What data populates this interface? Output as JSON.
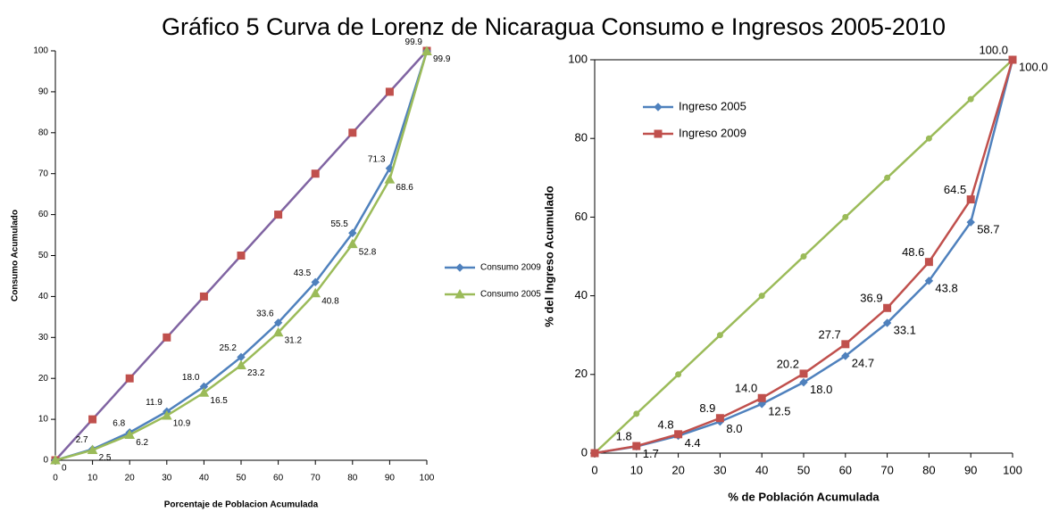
{
  "title": "Gráfico 5 Curva de Lorenz de Nicaragua Consumo e Ingresos 2005-2010",
  "chart_data": [
    {
      "type": "line",
      "x": [
        0,
        10,
        20,
        30,
        40,
        50,
        60,
        70,
        80,
        90,
        100
      ],
      "xlim": [
        0,
        100
      ],
      "xticks": [
        0,
        10,
        20,
        30,
        40,
        50,
        60,
        70,
        80,
        90,
        100
      ],
      "ylim": [
        0,
        100
      ],
      "yticks": [
        0,
        10,
        20,
        30,
        40,
        50,
        60,
        70,
        80,
        90,
        100
      ],
      "xlabel": "Porcentaje de Poblacion Acumulada",
      "ylabel": "Consumo Acumulado",
      "legend": "right",
      "series": [
        {
          "color": "#8064a2",
          "marker_color": "#c0504d",
          "marker": "square",
          "values": [
            0,
            10,
            20,
            30,
            40,
            50,
            60,
            70,
            80,
            90,
            100
          ]
        },
        {
          "name": "Consumo 2009",
          "color": "#4f81bd",
          "marker": "diamond",
          "values": [
            0,
            2.7,
            6.8,
            11.9,
            18.0,
            25.2,
            33.6,
            43.5,
            55.5,
            71.3,
            99.9
          ],
          "value_labels": [
            null,
            "2.7",
            "6.8",
            "11.9",
            "18.0",
            "25.2",
            "33.6",
            "43.5",
            "55.5",
            "71.3",
            "99.9"
          ]
        },
        {
          "name": "Consumo 2005",
          "color": "#9bbb59",
          "marker": "triangle",
          "values": [
            0,
            2.5,
            6.2,
            10.9,
            16.5,
            23.2,
            31.2,
            40.8,
            52.8,
            68.6,
            99.9
          ],
          "value_labels": [
            "0",
            "2.5",
            "6.2",
            "10.9",
            "16.5",
            "23.2",
            "31.2",
            "40.8",
            "52.8",
            "68.6",
            "99.9"
          ]
        }
      ]
    },
    {
      "type": "line",
      "x": [
        0,
        10,
        20,
        30,
        40,
        50,
        60,
        70,
        80,
        90,
        100
      ],
      "xlim": [
        0,
        100
      ],
      "xticks": [
        0,
        10,
        20,
        30,
        40,
        50,
        60,
        70,
        80,
        90,
        100
      ],
      "ylim": [
        0,
        100
      ],
      "yticks": [
        0,
        20,
        40,
        60,
        80,
        100
      ],
      "xlabel": "% de Población Acumulada",
      "ylabel": "% del Ingreso Acumulado",
      "legend": "upper left",
      "series": [
        {
          "color": "#9bbb59",
          "marker": "circle",
          "values": [
            0,
            10,
            20,
            30,
            40,
            50,
            60,
            70,
            80,
            90,
            100
          ]
        },
        {
          "name": "Ingreso 2005",
          "color": "#4f81bd",
          "marker": "diamond",
          "values": [
            0,
            1.7,
            4.4,
            8.0,
            12.5,
            18.0,
            24.7,
            33.1,
            43.8,
            58.7,
            100.0
          ],
          "value_labels": [
            null,
            "1.7",
            "4.4",
            "8.0",
            "12.5",
            "18.0",
            "24.7",
            "33.1",
            "43.8",
            "58.7",
            "100.0"
          ]
        },
        {
          "name": "Ingreso 2009",
          "color": "#c0504d",
          "marker": "square",
          "values": [
            0,
            1.8,
            4.8,
            8.9,
            14.0,
            20.2,
            27.7,
            36.9,
            48.6,
            64.5,
            100.0
          ],
          "value_labels": [
            null,
            "1.8",
            "4.8",
            "8.9",
            "14.0",
            "20.2",
            "27.7",
            "36.9",
            "48.6",
            "64.5",
            "100.0"
          ]
        }
      ]
    }
  ]
}
